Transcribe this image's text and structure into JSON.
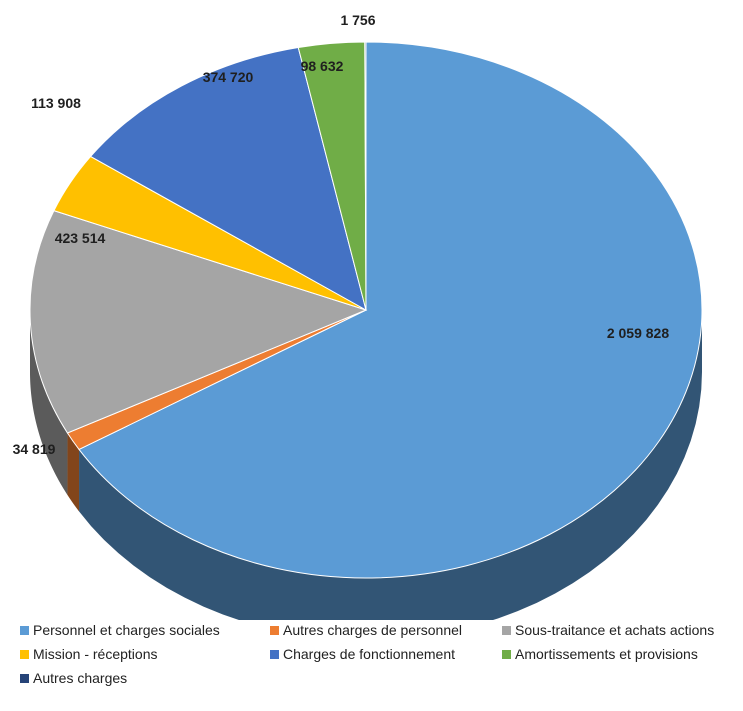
{
  "chart_data": {
    "type": "pie",
    "style": "3d",
    "series": [
      {
        "label": "Personnel et charges sociales",
        "value": 2059828,
        "value_label": "2 059 828",
        "color": "#5b9bd5"
      },
      {
        "label": "Autres charges de personnel",
        "value": 34819,
        "value_label": "34 819",
        "color": "#ed7d31"
      },
      {
        "label": "Sous-traitance et achats actions",
        "value": 423514,
        "value_label": "423 514",
        "color": "#a5a5a5"
      },
      {
        "label": "Mission - réceptions",
        "value": 113908,
        "value_label": "113 908",
        "color": "#ffc000"
      },
      {
        "label": "Charges de fonctionnement",
        "value": 374720,
        "value_label": "374 720",
        "color": "#4472c4"
      },
      {
        "label": "Amortissements et provisions",
        "value": 98632,
        "value_label": "98 632",
        "color": "#70ad47"
      },
      {
        "label": "Autres charges",
        "value": 1756,
        "value_label": "1 756",
        "color": "#264478"
      }
    ],
    "legend_position": "bottom"
  }
}
